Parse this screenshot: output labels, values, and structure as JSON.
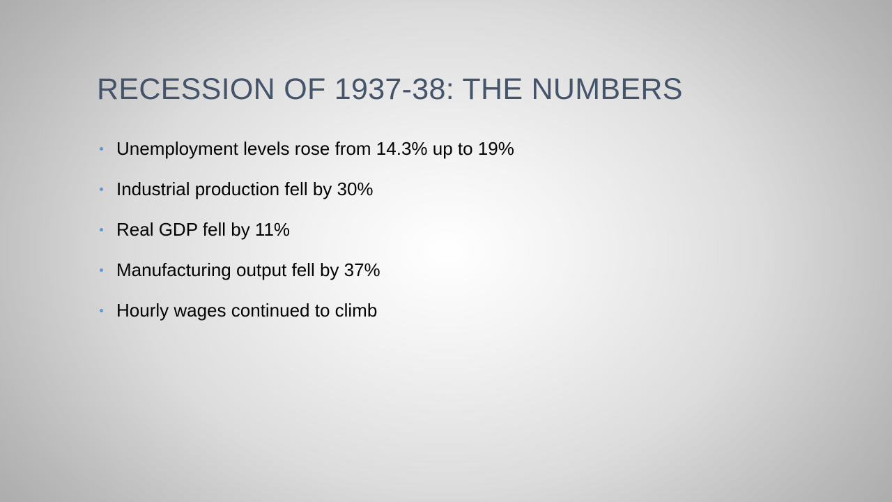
{
  "slide": {
    "title": "RECESSION OF 1937-38: THE NUMBERS",
    "bullets": [
      "Unemployment levels rose from 14.3% up to 19%",
      "Industrial production fell by 30%",
      "Real GDP fell by 11%",
      "Manufacturing output fell by 37%",
      "Hourly wages continued to climb"
    ]
  },
  "colors": {
    "title": "#44546a",
    "bullet_marker": "#5b9bd5",
    "body_text": "#000000"
  }
}
